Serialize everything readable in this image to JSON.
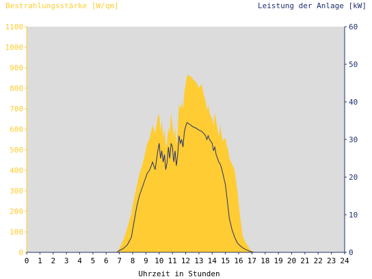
{
  "chart_data": {
    "type": "area",
    "left_axis_title": "Bestrahlungsstärke [W/qm]",
    "right_axis_title": "Leistung der Anlage [kW]",
    "xlabel": "Uhrzeit in Stunden",
    "xlim": [
      0,
      24
    ],
    "ylim_left": [
      0,
      1100
    ],
    "ylim_right": [
      0,
      60
    ],
    "x_ticks": [
      "0",
      "1",
      "2",
      "3",
      "4",
      "5",
      "6",
      "7",
      "8",
      "9",
      "10",
      "11",
      "12",
      "13",
      "14",
      "15",
      "16",
      "17",
      "18",
      "19",
      "20",
      "21",
      "22",
      "23",
      "24"
    ],
    "y_ticks_left": [
      "0",
      "100",
      "200",
      "300",
      "400",
      "500",
      "600",
      "700",
      "800",
      "900",
      "1000",
      "1100"
    ],
    "y_ticks_right": [
      "0",
      "10",
      "20",
      "30",
      "40",
      "50",
      "60"
    ],
    "grid": false,
    "colors": {
      "irradiance_fill": "#ffcc33",
      "power_line": "#1f2f6e",
      "plot_background": "#dcdcdc",
      "left_axis": "#ffcc33",
      "right_axis": "#1f2f6e"
    },
    "series": [
      {
        "axis": "left",
        "style": "area",
        "x": [
          0,
          6.8,
          7.0,
          7.3,
          7.6,
          7.9,
          8.1,
          8.3,
          8.5,
          8.7,
          8.9,
          9.1,
          9.3,
          9.5,
          9.7,
          9.9,
          10.0,
          10.1,
          10.2,
          10.3,
          10.4,
          10.5,
          10.6,
          10.7,
          10.8,
          10.9,
          11.0,
          11.1,
          11.2,
          11.3,
          11.4,
          11.5,
          11.6,
          11.7,
          11.8,
          11.9,
          12.0,
          12.1,
          12.2,
          12.3,
          12.4,
          12.5,
          12.6,
          12.8,
          13.0,
          13.2,
          13.4,
          13.5,
          13.6,
          13.7,
          13.8,
          14.0,
          14.1,
          14.2,
          14.3,
          14.4,
          14.5,
          14.6,
          14.7,
          14.8,
          15.0,
          15.1,
          15.2,
          15.3,
          15.5,
          15.7,
          15.9,
          16.1,
          16.3,
          16.5,
          16.7,
          16.9,
          17.1,
          17.3,
          17.5,
          24
        ],
        "y": [
          0,
          0,
          20,
          60,
          120,
          190,
          260,
          320,
          380,
          420,
          470,
          530,
          560,
          620,
          580,
          660,
          675,
          590,
          640,
          560,
          600,
          510,
          540,
          610,
          580,
          680,
          630,
          560,
          610,
          520,
          600,
          720,
          700,
          730,
          700,
          780,
          820,
          860,
          865,
          860,
          855,
          850,
          840,
          830,
          800,
          820,
          760,
          740,
          690,
          720,
          680,
          650,
          620,
          680,
          640,
          600,
          560,
          620,
          580,
          540,
          560,
          520,
          500,
          460,
          430,
          400,
          300,
          180,
          80,
          50,
          30,
          10,
          5,
          0,
          0,
          0
        ]
      },
      {
        "axis": "right",
        "style": "line",
        "x": [
          0,
          6.8,
          7.0,
          7.3,
          7.6,
          7.9,
          8.1,
          8.3,
          8.5,
          8.7,
          8.9,
          9.1,
          9.3,
          9.5,
          9.7,
          9.9,
          10.0,
          10.1,
          10.2,
          10.3,
          10.4,
          10.5,
          10.6,
          10.7,
          10.8,
          10.9,
          11.0,
          11.1,
          11.2,
          11.3,
          11.4,
          11.5,
          11.6,
          11.7,
          11.8,
          11.9,
          12.0,
          12.1,
          12.2,
          12.3,
          12.4,
          12.5,
          12.6,
          12.8,
          13.0,
          13.2,
          13.4,
          13.5,
          13.6,
          13.7,
          13.8,
          14.0,
          14.1,
          14.2,
          14.3,
          14.4,
          14.5,
          14.6,
          14.7,
          14.8,
          15.0,
          15.1,
          15.2,
          15.3,
          15.5,
          15.7,
          15.9,
          16.1,
          16.3,
          16.5,
          16.7,
          16.9,
          17.1,
          17.3,
          17.5,
          24
        ],
        "y": [
          0,
          0,
          0.5,
          1,
          2,
          4,
          8,
          12,
          15,
          17,
          19,
          21,
          22,
          24,
          22,
          27,
          29,
          25,
          27,
          24,
          26,
          22,
          24,
          28,
          25,
          29,
          28,
          24,
          27,
          23,
          26,
          31,
          29,
          30,
          28,
          32,
          33.5,
          34.5,
          34.3,
          34,
          33.8,
          33.5,
          33.3,
          33,
          32.5,
          32.2,
          31.5,
          31,
          30,
          31,
          30,
          29,
          27,
          28,
          26,
          25,
          24,
          23.5,
          22.5,
          21,
          18,
          15,
          12,
          9,
          6,
          4,
          2.5,
          1.8,
          1.2,
          0.8,
          0.5,
          0.2,
          0,
          0,
          0,
          0
        ]
      }
    ]
  }
}
